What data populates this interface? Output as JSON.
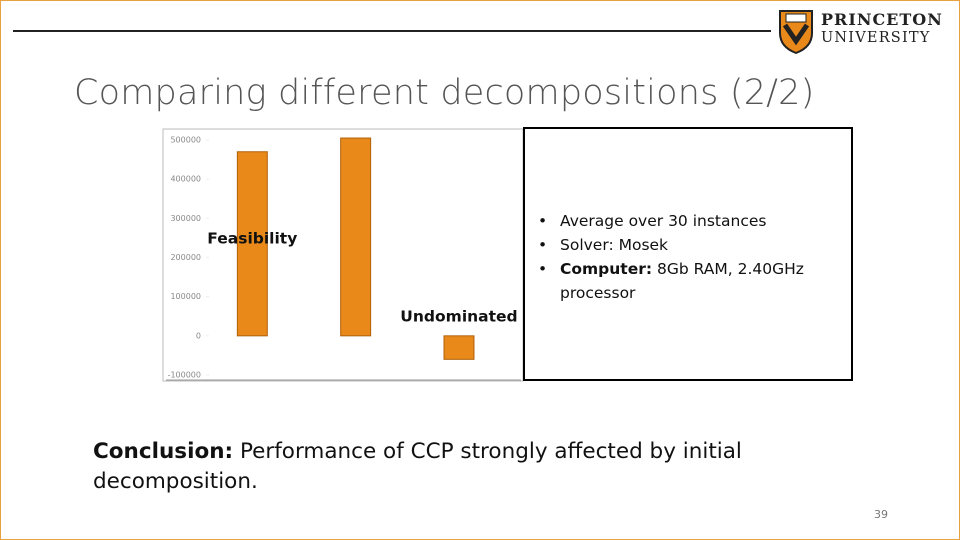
{
  "header": {
    "logo_line1": "PRINCETON",
    "logo_line2": "UNIVERSITY"
  },
  "title": "Comparing different decompositions (2/2)",
  "chart_data": {
    "type": "bar",
    "categories": [
      "Feasibility",
      null,
      "Undominated"
    ],
    "values": [
      470000,
      505000,
      -60000
    ],
    "color": "#e8891a",
    "ylim": [
      -100000,
      500000
    ],
    "yticks": [
      -100000,
      0,
      100000,
      200000,
      300000,
      400000,
      500000
    ]
  },
  "notes": {
    "bullets": [
      {
        "lead": null,
        "text": "Average over 30 instances"
      },
      {
        "lead": null,
        "text": "Solver: Mosek"
      },
      {
        "lead": "Computer:",
        "text": " 8Gb RAM, 2.40GHz processor"
      }
    ]
  },
  "conclusion": {
    "lead": "Conclusion:",
    "text": " Performance of CCP strongly affected by initial decomposition."
  },
  "page_number": "39"
}
